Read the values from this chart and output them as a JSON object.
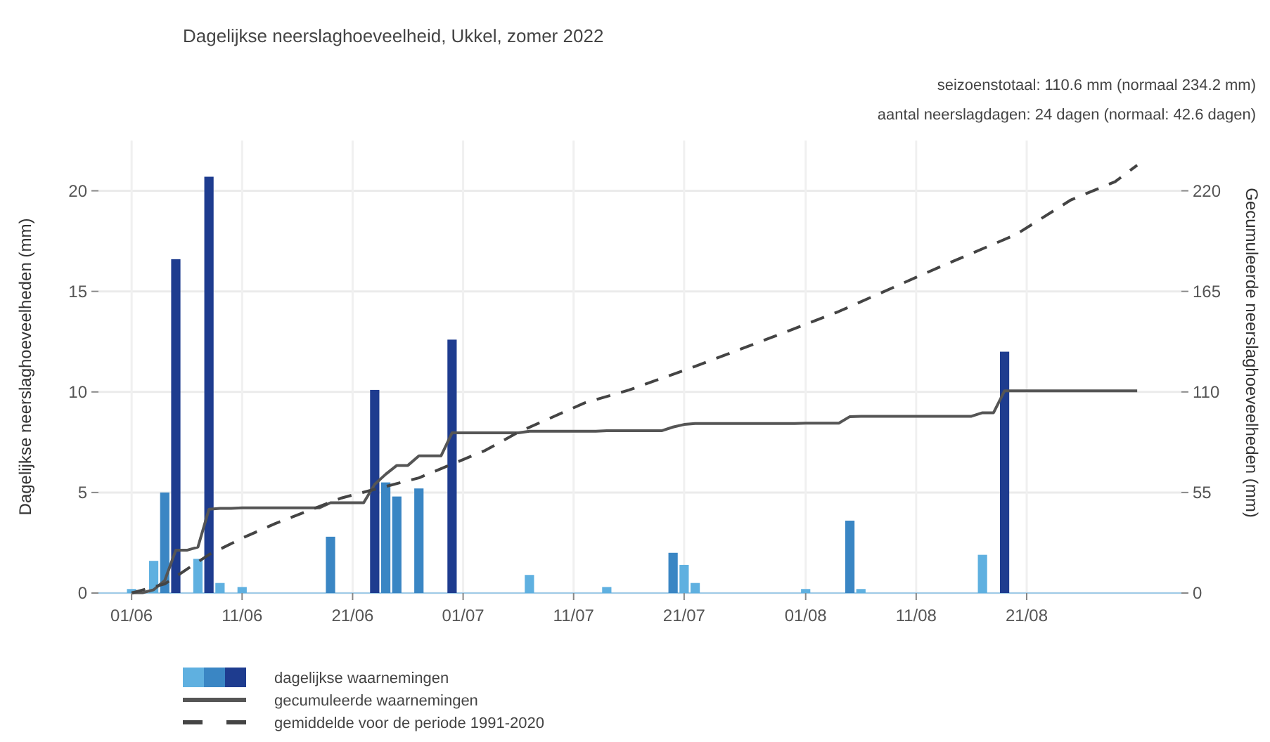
{
  "chart_data": {
    "type": "bar",
    "title": "Dagelijkse neerslaghoeveelheid, Ukkel, zomer 2022",
    "annotations": [
      "seizoenstotaal: 110.6 mm (normaal 234.2 mm)",
      "aantal neerslagdagen: 24 dagen (normaal: 42.6 dagen)"
    ],
    "ylabel": "Dagelijkse neerslaghoeveelheden (mm)",
    "y2label": "Gecumuleerde neerslaghoeveelheden (mm)",
    "xlim": [
      "2022-05-29",
      "2022-09-04"
    ],
    "xticks": [
      {
        "value": "2022-06-01",
        "label": "01/06"
      },
      {
        "value": "2022-06-11",
        "label": "11/06"
      },
      {
        "value": "2022-06-21",
        "label": "21/06"
      },
      {
        "value": "2022-07-01",
        "label": "01/07"
      },
      {
        "value": "2022-07-11",
        "label": "11/07"
      },
      {
        "value": "2022-07-21",
        "label": "21/07"
      },
      {
        "value": "2022-08-01",
        "label": "01/08"
      },
      {
        "value": "2022-08-11",
        "label": "11/08"
      },
      {
        "value": "2022-08-21",
        "label": "21/08"
      }
    ],
    "ylim": [
      0,
      22.5
    ],
    "yticks": [
      0,
      5,
      10,
      15,
      20
    ],
    "y2lim": [
      0,
      247.5
    ],
    "y2ticks": [
      0,
      55,
      110,
      165,
      220
    ],
    "grid": true,
    "legend": "bottom",
    "series": [
      {
        "name": "dagelijkse waarnemingen",
        "x": [
          "2022-06-01",
          "2022-06-03",
          "2022-06-04",
          "2022-06-05",
          "2022-06-07",
          "2022-06-08",
          "2022-06-09",
          "2022-06-11",
          "2022-06-19",
          "2022-06-23",
          "2022-06-24",
          "2022-06-25",
          "2022-06-27",
          "2022-06-30",
          "2022-07-07",
          "2022-07-14",
          "2022-07-20",
          "2022-07-21",
          "2022-07-22",
          "2022-08-01",
          "2022-08-05",
          "2022-08-06",
          "2022-08-17",
          "2022-08-19"
        ],
        "values": [
          0.2,
          1.6,
          5.0,
          16.6,
          1.7,
          20.7,
          0.5,
          0.3,
          2.8,
          10.1,
          5.5,
          4.8,
          5.2,
          12.6,
          0.9,
          0.3,
          2.0,
          1.4,
          0.5,
          0.2,
          3.6,
          0.2,
          1.9,
          12.0
        ],
        "colors": [
          "#5fb0e0",
          "#5fb0e0",
          "#3a86c4",
          "#1e3c8f",
          "#5fb0e0",
          "#1e3c8f",
          "#5fb0e0",
          "#5fb0e0",
          "#3a86c4",
          "#1e3c8f",
          "#3a86c4",
          "#3a86c4",
          "#3a86c4",
          "#1e3c8f",
          "#5fb0e0",
          "#5fb0e0",
          "#3a86c4",
          "#5fb0e0",
          "#5fb0e0",
          "#5fb0e0",
          "#3a86c4",
          "#5fb0e0",
          "#5fb0e0",
          "#1e3c8f"
        ]
      },
      {
        "name": "gecumuleerde waarnemingen",
        "type": "line",
        "axis": "y2",
        "color": "#555555",
        "line_style": "solid",
        "x": [
          "2022-06-01",
          "2022-06-02",
          "2022-06-03",
          "2022-06-04",
          "2022-06-05",
          "2022-06-06",
          "2022-06-07",
          "2022-06-08",
          "2022-06-09",
          "2022-06-10",
          "2022-06-11",
          "2022-06-18",
          "2022-06-19",
          "2022-06-22",
          "2022-06-23",
          "2022-06-24",
          "2022-06-25",
          "2022-06-26",
          "2022-06-27",
          "2022-06-29",
          "2022-06-30",
          "2022-07-06",
          "2022-07-07",
          "2022-07-13",
          "2022-07-14",
          "2022-07-19",
          "2022-07-20",
          "2022-07-21",
          "2022-07-22",
          "2022-07-31",
          "2022-08-01",
          "2022-08-04",
          "2022-08-05",
          "2022-08-06",
          "2022-08-16",
          "2022-08-17",
          "2022-08-18",
          "2022-08-19",
          "2022-08-31"
        ],
        "values": [
          0.2,
          0.2,
          1.8,
          6.8,
          23.4,
          23.4,
          25.1,
          45.8,
          46.3,
          46.3,
          46.6,
          46.6,
          49.4,
          49.4,
          59.5,
          65.0,
          69.8,
          69.8,
          75.0,
          75.0,
          87.6,
          87.6,
          88.5,
          88.5,
          88.8,
          88.8,
          90.8,
          92.2,
          92.7,
          92.7,
          92.9,
          92.9,
          96.5,
          96.7,
          96.7,
          98.6,
          98.6,
          110.6,
          110.6
        ]
      },
      {
        "name": "gemiddelde voor de periode 1991-2020",
        "type": "line",
        "axis": "y2",
        "color": "#444444",
        "line_style": "dashed",
        "x": [
          "2022-06-01",
          "2022-06-04",
          "2022-06-08",
          "2022-06-11",
          "2022-06-14",
          "2022-06-17",
          "2022-06-20",
          "2022-06-27",
          "2022-07-03",
          "2022-07-06",
          "2022-07-09",
          "2022-07-12",
          "2022-07-16",
          "2022-07-22",
          "2022-07-29",
          "2022-08-04",
          "2022-08-13",
          "2022-08-20",
          "2022-08-25",
          "2022-08-29",
          "2022-08-31"
        ],
        "values": [
          0,
          5,
          21,
          30,
          38,
          45,
          52,
          63,
          78,
          88,
          96,
          104,
          111,
          124,
          140,
          154,
          178,
          196,
          215,
          225,
          234
        ]
      }
    ]
  }
}
